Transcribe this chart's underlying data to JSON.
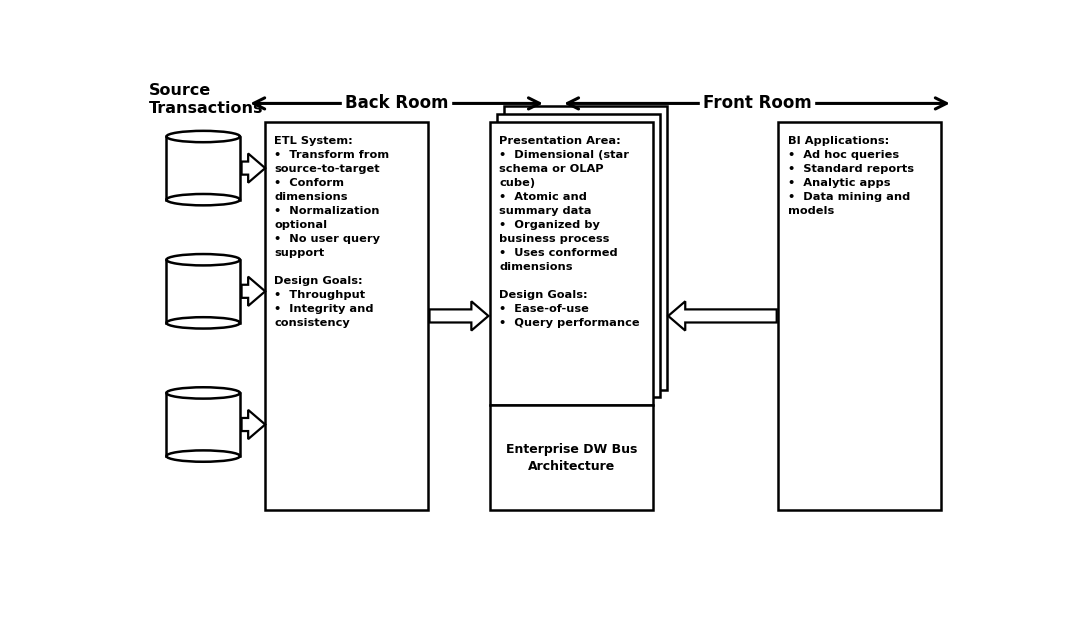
{
  "bg_color": "#ffffff",
  "title_source": "Source\nTransactions",
  "title_backroom": "Back Room",
  "title_frontroom": "Front Room",
  "etl_title": "ETL System:",
  "etl_bullets": [
    "Transform from\nsource-to-target",
    "Conform\ndimensions",
    "Normalization\noptional",
    "No user query\nsupport"
  ],
  "etl_goals_title": "Design Goals:",
  "etl_goals_bullets": [
    "Throughput",
    "Integrity and\nconsistency"
  ],
  "pres_title": "Presentation Area:",
  "pres_bullets": [
    "Dimensional (star\nschema or OLAP\ncube)",
    "Atomic and\nsummary data",
    "Organized by\nbusiness process",
    "Uses conformed\ndimensions"
  ],
  "pres_goals_title": "Design Goals:",
  "pres_goals_bullets": [
    "Ease-of-use",
    "Query performance"
  ],
  "bus_title": "Enterprise DW Bus\nArchitecture",
  "bi_title": "BI Applications:",
  "bi_bullets": [
    "Ad hoc queries",
    "Standard reports",
    "Analytic apps",
    "Data mining and\nmodels"
  ],
  "text_color": "#000000",
  "box_edge_color": "#000000",
  "box_face_color": "#ffffff",
  "arrow_color": "#000000",
  "figw": 10.8,
  "figh": 6.18,
  "dpi": 100
}
